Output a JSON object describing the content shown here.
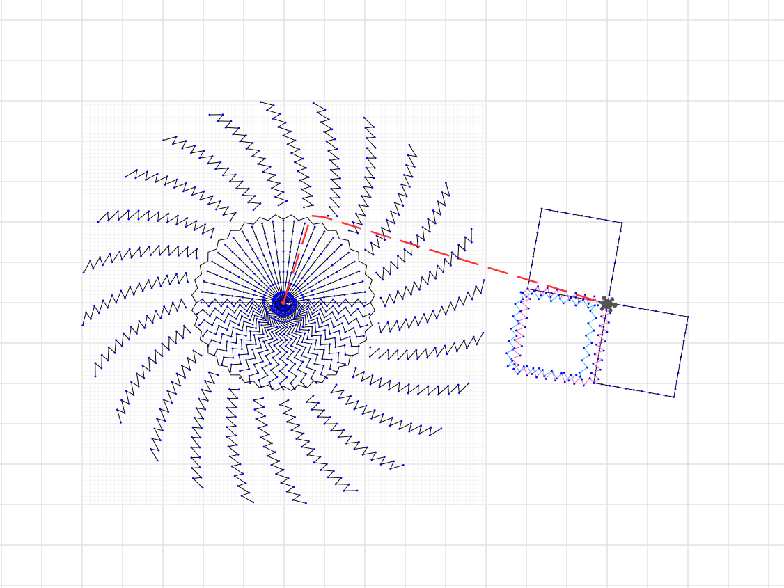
{
  "canvas": {
    "background": "#ffffff",
    "grid_color": "#e2e2e2",
    "fine_grid_color": "#efefef"
  },
  "drawing": {
    "line_color": "#000000",
    "vertex_color": "#0000ff",
    "path_trail_color": "#ff3333",
    "zigzag_inner_color": "#33bbff",
    "zigzag_outer_color": "#ff66bb",
    "spiral_arm_count": 24,
    "radial_line_count": 24
  },
  "turtle": {
    "icon": "turtle-icon",
    "color": "#555555",
    "heading_deg": 10
  }
}
